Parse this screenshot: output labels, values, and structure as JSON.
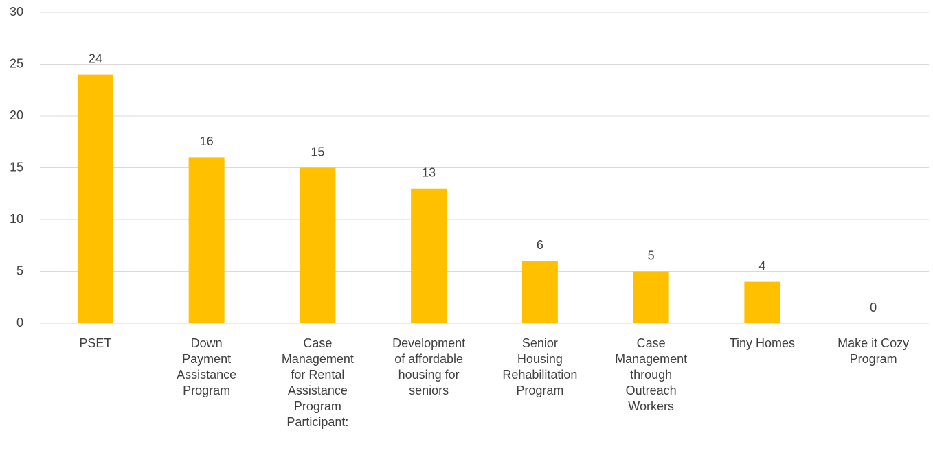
{
  "chart_data": {
    "type": "bar",
    "categories": [
      "PSET",
      "Down Payment Assistance Program",
      "Case Management for Rental Assistance Program Participant:",
      "Development of affordable housing for seniors",
      "Senior Housing Rehabilitation Program",
      "Case Management through Outreach Workers",
      "Tiny Homes",
      "Make it Cozy Program"
    ],
    "values": [
      24,
      16,
      15,
      13,
      6,
      5,
      4,
      0
    ],
    "color": "#ffc000",
    "ylim": [
      0,
      30
    ],
    "yticks": [
      0,
      5,
      10,
      15,
      20,
      25,
      30
    ],
    "grid": true
  }
}
